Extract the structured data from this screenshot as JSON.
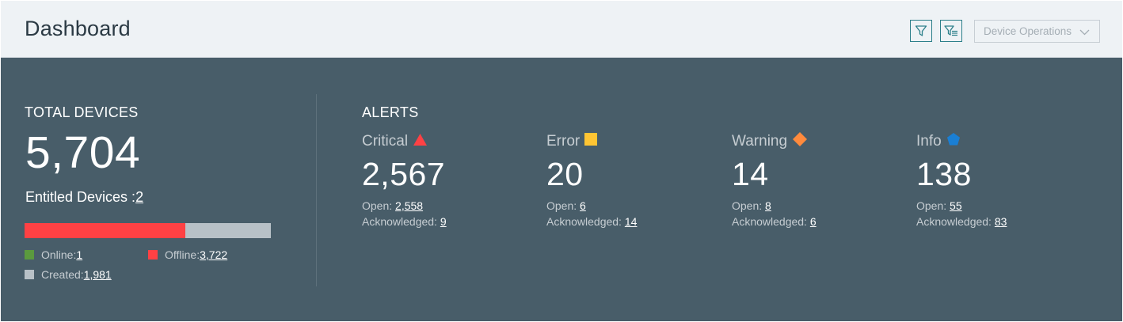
{
  "header": {
    "title": "Dashboard",
    "filter_icon": "filter-icon",
    "filter_list_icon": "filter-list-icon",
    "device_operations_label": "Device Operations"
  },
  "total_devices": {
    "title": "TOTAL DEVICES",
    "value": "5,704",
    "entitled_label": "Entitled Devices :",
    "entitled_value": "2",
    "status_bar": {
      "online_fraction": 0.0002,
      "offline_fraction": 0.6525,
      "created_fraction": 0.3473
    },
    "legend": {
      "online_label": "Online:",
      "online_value": "1",
      "offline_label": "Offline:",
      "offline_value": "3,722",
      "created_label": "Created:",
      "created_value": "1,981"
    }
  },
  "alerts": {
    "title": "ALERTS",
    "open_label": "Open:",
    "acknowledged_label": "Acknowledged:",
    "items": [
      {
        "label": "Critical",
        "icon": "triangle-icon",
        "color": "#ff4144",
        "count": "2,567",
        "open": "2,558",
        "acknowledged": "9"
      },
      {
        "label": "Error",
        "icon": "square-icon",
        "color": "#ffc533",
        "count": "20",
        "open": "6",
        "acknowledged": "14"
      },
      {
        "label": "Warning",
        "icon": "diamond-icon",
        "color": "#ff8a3d",
        "count": "14",
        "open": "8",
        "acknowledged": "6"
      },
      {
        "label": "Info",
        "icon": "pentagon-icon",
        "color": "#1a7fd4",
        "count": "138",
        "open": "55",
        "acknowledged": "83"
      }
    ]
  },
  "colors": {
    "panel_bg": "#485d69",
    "header_bg": "#eef2f5",
    "online": "#5b9a3e",
    "offline": "#ff4144",
    "created": "#b8c1c7",
    "accent": "#2c7f8a"
  }
}
